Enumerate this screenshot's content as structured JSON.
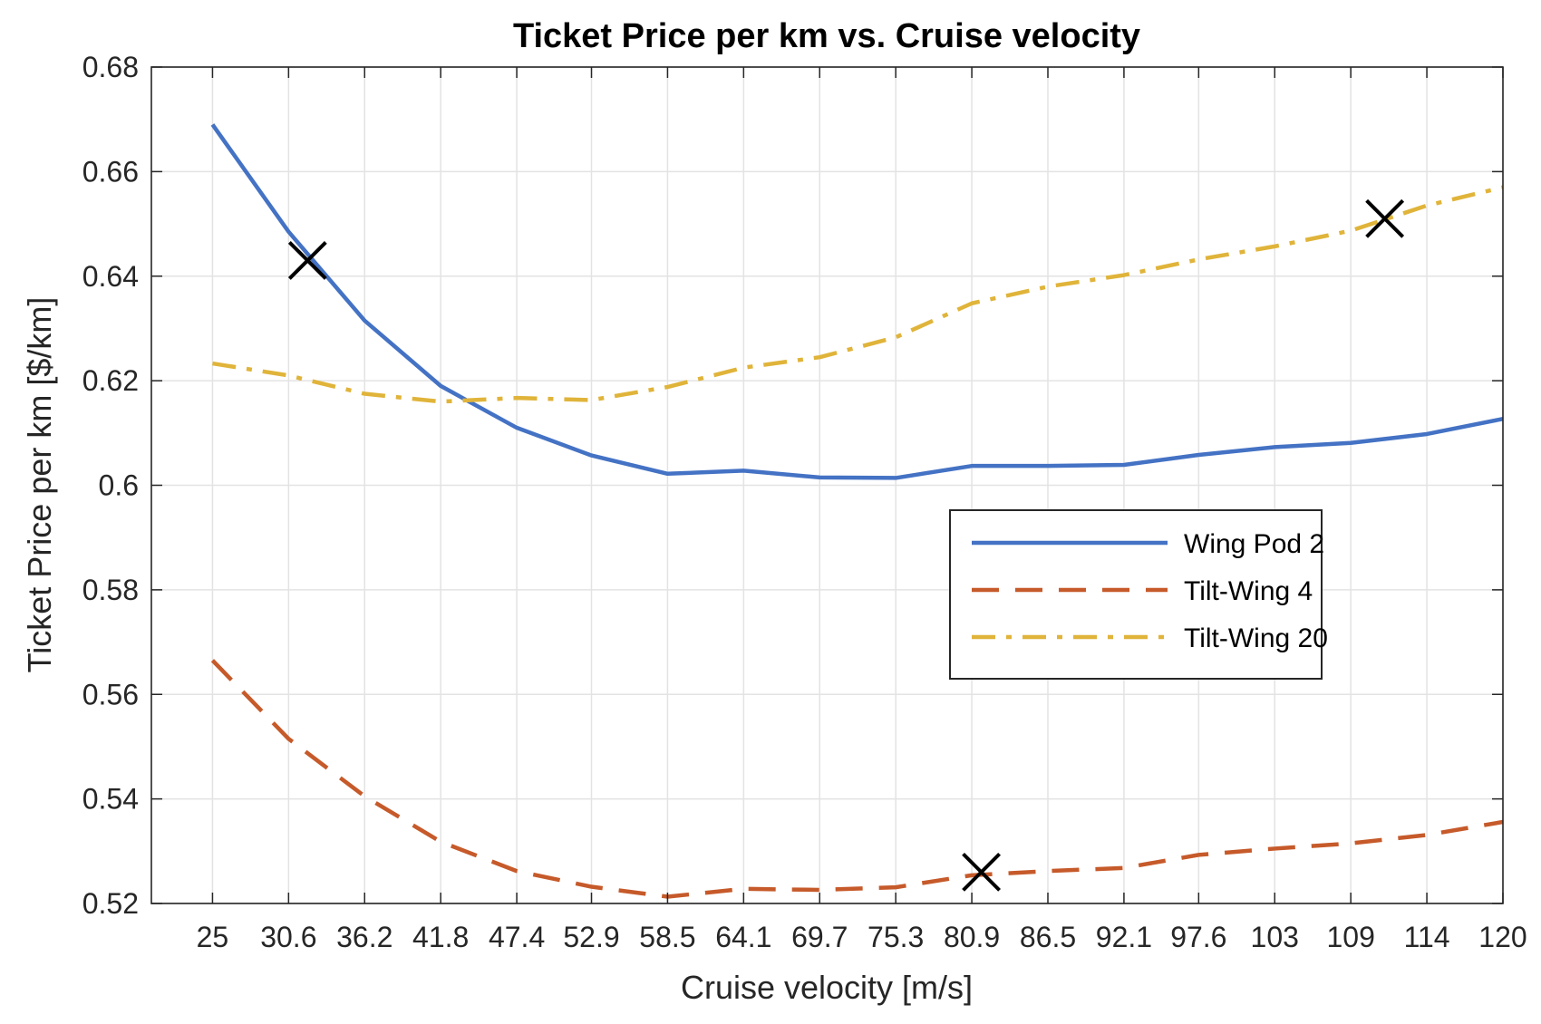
{
  "chart_data": {
    "type": "line",
    "title": "Ticket Price per km vs. Cruise velocity",
    "xlabel": "Cruise velocity [m/s]",
    "ylabel": "Ticket Price per km [$/km]",
    "x_tick_labels": [
      "25",
      "30.6",
      "36.2",
      "41.8",
      "47.4",
      "52.9",
      "58.5",
      "64.1",
      "69.7",
      "75.3",
      "80.9",
      "86.5",
      "92.1",
      "97.6",
      "103",
      "109",
      "114",
      "120"
    ],
    "y_tick_labels": [
      "0.52",
      "0.54",
      "0.56",
      "0.58",
      "0.6",
      "0.62",
      "0.64",
      "0.66",
      "0.68"
    ],
    "x": [
      25,
      30.6,
      36.2,
      41.8,
      47.4,
      52.9,
      58.5,
      64.1,
      69.7,
      75.3,
      80.9,
      86.5,
      92.1,
      97.6,
      103.2,
      108.8,
      114.4,
      120
    ],
    "xlim": [
      20.5,
      120
    ],
    "ylim": [
      0.52,
      0.68
    ],
    "grid": true,
    "legend_position": "center-right",
    "series": [
      {
        "name": "Wing Pod 2",
        "color": "#4472C4",
        "line_style": "solid",
        "values": [
          0.669,
          0.6485,
          0.6315,
          0.619,
          0.611,
          0.6057,
          0.6022,
          0.6028,
          0.6015,
          0.6014,
          0.6037,
          0.6037,
          0.6039,
          0.6058,
          0.6073,
          0.6081,
          0.6098,
          0.6127
        ]
      },
      {
        "name": "Tilt-Wing 4",
        "color": "#C65A2A",
        "line_style": "dashed",
        "values": [
          0.5665,
          0.5515,
          0.5405,
          0.5318,
          0.5262,
          0.5232,
          0.5213,
          0.5228,
          0.5226,
          0.5231,
          0.5254,
          0.5262,
          0.5268,
          0.5293,
          0.5305,
          0.5315,
          0.5331,
          0.5356
        ]
      },
      {
        "name": "Tilt-Wing 20",
        "color": "#E0B43A",
        "line_style": "dash-dot",
        "values": [
          0.6233,
          0.621,
          0.6175,
          0.616,
          0.6167,
          0.6163,
          0.6188,
          0.6225,
          0.6245,
          0.6283,
          0.6348,
          0.638,
          0.6402,
          0.6432,
          0.6457,
          0.6487,
          0.6535,
          0.657
        ]
      }
    ],
    "markers": [
      {
        "symbol": "x",
        "x": 32.0,
        "y": 0.643,
        "color": "#000000"
      },
      {
        "symbol": "x",
        "x": 81.6,
        "y": 0.526,
        "color": "#000000"
      },
      {
        "symbol": "x",
        "x": 111.3,
        "y": 0.651,
        "color": "#000000"
      }
    ]
  }
}
